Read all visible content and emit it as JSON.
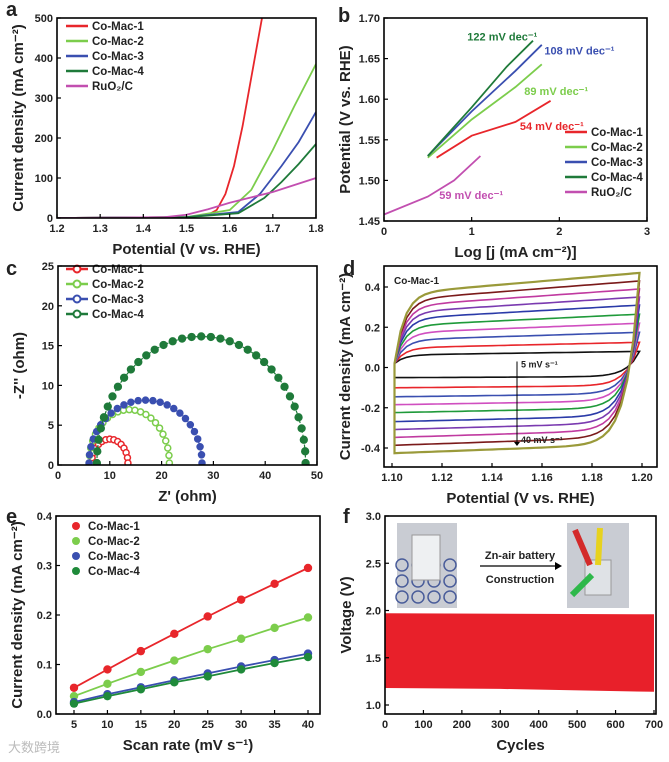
{
  "watermark": "大数跨境",
  "chart_data": [
    {
      "panel": "a",
      "type": "line",
      "xlabel": "Potential (V vs. RHE)",
      "ylabel": "Current density (mA cm⁻²)",
      "xlim": [
        1.2,
        1.8
      ],
      "ylim": [
        0,
        500
      ],
      "xticks": [
        "1.2",
        "1.3",
        "1.4",
        "1.5",
        "1.6",
        "1.7",
        "1.8"
      ],
      "yticks": [
        "0",
        "100",
        "200",
        "300",
        "400",
        "500"
      ],
      "legend": "top-left",
      "series": [
        {
          "name": "Co-Mac-1",
          "color": "#e8262b",
          "points": [
            [
              1.2,
              0
            ],
            [
              1.5,
              2
            ],
            [
              1.55,
              8
            ],
            [
              1.57,
              20
            ],
            [
              1.59,
              60
            ],
            [
              1.61,
              130
            ],
            [
              1.63,
              230
            ],
            [
              1.65,
              350
            ],
            [
              1.675,
              500
            ]
          ]
        },
        {
          "name": "Co-Mac-2",
          "color": "#7ccd4c",
          "points": [
            [
              1.2,
              0
            ],
            [
              1.5,
              2
            ],
            [
              1.6,
              20
            ],
            [
              1.65,
              70
            ],
            [
              1.7,
              170
            ],
            [
              1.75,
              280
            ],
            [
              1.8,
              385
            ]
          ]
        },
        {
          "name": "Co-Mac-3",
          "color": "#3a4fb0",
          "points": [
            [
              1.2,
              0
            ],
            [
              1.5,
              2
            ],
            [
              1.62,
              15
            ],
            [
              1.67,
              60
            ],
            [
              1.72,
              130
            ],
            [
              1.76,
              190
            ],
            [
              1.8,
              265
            ]
          ]
        },
        {
          "name": "Co-Mac-4",
          "color": "#1f7a3a",
          "points": [
            [
              1.2,
              0
            ],
            [
              1.5,
              2
            ],
            [
              1.62,
              12
            ],
            [
              1.68,
              50
            ],
            [
              1.72,
              90
            ],
            [
              1.76,
              135
            ],
            [
              1.8,
              185
            ]
          ]
        },
        {
          "name": "RuO₂/C",
          "color": "#c24fb0",
          "points": [
            [
              1.2,
              0
            ],
            [
              1.45,
              2
            ],
            [
              1.5,
              8
            ],
            [
              1.55,
              22
            ],
            [
              1.6,
              38
            ],
            [
              1.7,
              65
            ],
            [
              1.8,
              100
            ]
          ]
        }
      ]
    },
    {
      "panel": "b",
      "type": "line",
      "xlabel": "Log [j (mA cm⁻²)]",
      "ylabel": "Potential (V vs. RHE)",
      "xlim": [
        0,
        3
      ],
      "ylim": [
        1.45,
        1.7
      ],
      "xticks": [
        "0",
        "1",
        "2",
        "3"
      ],
      "yticks": [
        "1.45",
        "1.50",
        "1.55",
        "1.60",
        "1.65",
        "1.70"
      ],
      "legend": "bottom-right",
      "series": [
        {
          "name": "Co-Mac-1",
          "color": "#e8262b",
          "points": [
            [
              0.6,
              1.528
            ],
            [
              1.0,
              1.555
            ],
            [
              1.5,
              1.572
            ],
            [
              1.9,
              1.598
            ]
          ]
        },
        {
          "name": "Co-Mac-2",
          "color": "#7ccd4c",
          "points": [
            [
              0.5,
              1.528
            ],
            [
              1.0,
              1.575
            ],
            [
              1.5,
              1.615
            ],
            [
              1.8,
              1.643
            ]
          ]
        },
        {
          "name": "Co-Mac-3",
          "color": "#3a4fb0",
          "points": [
            [
              0.5,
              1.53
            ],
            [
              1.0,
              1.585
            ],
            [
              1.5,
              1.635
            ],
            [
              1.8,
              1.667
            ]
          ]
        },
        {
          "name": "Co-Mac-4",
          "color": "#1f7a3a",
          "points": [
            [
              0.5,
              1.53
            ],
            [
              1.0,
              1.59
            ],
            [
              1.4,
              1.64
            ],
            [
              1.7,
              1.672
            ]
          ]
        },
        {
          "name": "RuO₂/C",
          "color": "#c24fb0",
          "points": [
            [
              0,
              1.458
            ],
            [
              0.5,
              1.48
            ],
            [
              0.8,
              1.5
            ],
            [
              1.1,
              1.53
            ]
          ]
        }
      ],
      "annotations": [
        {
          "text": "122  mV dec⁻¹",
          "color": "#1f7a3a",
          "at": [
            0.95,
            1.672
          ]
        },
        {
          "text": "108  mV dec⁻¹",
          "color": "#3a4fb0",
          "at": [
            1.83,
            1.655
          ]
        },
        {
          "text": "89  mV dec⁻¹",
          "color": "#7ccd4c",
          "at": [
            1.6,
            1.605
          ]
        },
        {
          "text": "54  mV dec⁻¹",
          "color": "#e8262b",
          "at": [
            1.55,
            1.562
          ]
        },
        {
          "text": "59  mV dec⁻¹",
          "color": "#c24fb0",
          "at": [
            0.63,
            1.477
          ]
        }
      ]
    },
    {
      "panel": "c",
      "type": "scatter",
      "xlabel": "Z' (ohm)",
      "ylabel": "-Z'' (ohm)",
      "xlim": [
        0,
        50
      ],
      "ylim": [
        0,
        25
      ],
      "xticks": [
        "0",
        "10",
        "20",
        "30",
        "40",
        "50"
      ],
      "yticks": [
        "0",
        "5",
        "10",
        "15",
        "20",
        "25"
      ],
      "legend": "top-left",
      "series": [
        {
          "name": "Co-Mac-1",
          "color": "#e8262b",
          "arc": {
            "start": 6.5,
            "end": 13.5,
            "peak": 3.0,
            "n": 14
          }
        },
        {
          "name": "Co-Mac-2",
          "color": "#7ccd4c",
          "arc": {
            "start": 6.0,
            "end": 21.5,
            "peak": 6.7,
            "n": 22
          }
        },
        {
          "name": "Co-Mac-3",
          "color": "#3a4fb0",
          "arc": {
            "start": 6.0,
            "end": 27.8,
            "peak": 7.9,
            "n": 24
          }
        },
        {
          "name": "Co-Mac-4",
          "color": "#1f7a3a",
          "arc": {
            "start": 7.5,
            "end": 47.8,
            "peak": 15.9,
            "n": 34
          }
        }
      ]
    },
    {
      "panel": "d",
      "type": "line",
      "xlabel": "Potential (V vs. RHE)",
      "ylabel": "Current density (mA cm⁻²)",
      "xlim": [
        1.1,
        1.2
      ],
      "ylim": [
        -0.4,
        0.4
      ],
      "xticks": [
        "1.10",
        "1.12",
        "1.14",
        "1.16",
        "1.18",
        "1.20"
      ],
      "yticks": [
        "-0.4",
        "-0.2",
        "0.0",
        "0.2",
        "0.4"
      ],
      "sample": "Co-Mac-1",
      "arrow_start": "5 mV s⁻¹",
      "arrow_end": "40 mV s⁻¹",
      "series": [
        {
          "color": "#111111",
          "upper_end": 0.08,
          "lower_plateau": -0.045
        },
        {
          "color": "#e8262b",
          "upper_end": 0.125,
          "lower_plateau": -0.09
        },
        {
          "color": "#3a4fb0",
          "upper_end": 0.175,
          "lower_plateau": -0.13
        },
        {
          "color": "#d04fc0",
          "upper_end": 0.22,
          "lower_plateau": -0.165
        },
        {
          "color": "#1f9a3a",
          "upper_end": 0.265,
          "lower_plateau": -0.2
        },
        {
          "color": "#2a3aa8",
          "upper_end": 0.31,
          "lower_plateau": -0.24
        },
        {
          "color": "#7a3ab0",
          "upper_end": 0.35,
          "lower_plateau": -0.275
        },
        {
          "color": "#c03aa0",
          "upper_end": 0.39,
          "lower_plateau": -0.31
        },
        {
          "color": "#7a1a1a",
          "upper_end": 0.43,
          "lower_plateau": -0.345
        },
        {
          "color": "#9a9a3a",
          "upper_end": 0.47,
          "lower_plateau": -0.38
        }
      ]
    },
    {
      "panel": "e",
      "type": "scatter",
      "xlabel": "Scan rate (mV s⁻¹)",
      "ylabel": "Current density (mA cm⁻²)",
      "xlim": [
        5,
        40
      ],
      "ylim": [
        0,
        0.4
      ],
      "xticks": [
        "5",
        "10",
        "15",
        "20",
        "25",
        "30",
        "35",
        "40"
      ],
      "yticks": [
        "0.0",
        "0.1",
        "0.2",
        "0.3",
        "0.4"
      ],
      "legend": "top-left",
      "x": [
        5,
        10,
        15,
        20,
        25,
        30,
        35,
        40
      ],
      "series": [
        {
          "name": "Co-Mac-1",
          "color": "#e8262b",
          "values": [
            0.053,
            0.09,
            0.127,
            0.162,
            0.197,
            0.231,
            0.263,
            0.295
          ]
        },
        {
          "name": "Co-Mac-2",
          "color": "#7ccd4c",
          "values": [
            0.036,
            0.061,
            0.085,
            0.108,
            0.131,
            0.152,
            0.174,
            0.195
          ]
        },
        {
          "name": "Co-Mac-3",
          "color": "#3a4fb0",
          "values": [
            0.024,
            0.04,
            0.054,
            0.068,
            0.082,
            0.096,
            0.109,
            0.122
          ]
        },
        {
          "name": "Co-Mac-4",
          "color": "#1f8a3a",
          "values": [
            0.021,
            0.036,
            0.05,
            0.064,
            0.076,
            0.09,
            0.103,
            0.115
          ]
        }
      ]
    },
    {
      "panel": "f",
      "type": "area",
      "xlabel": "Cycles",
      "ylabel": "Voltage (V)",
      "xlim": [
        0,
        700
      ],
      "ylim": [
        1.0,
        3.0
      ],
      "xticks": [
        "0",
        "100",
        "200",
        "300",
        "400",
        "500",
        "600",
        "700"
      ],
      "yticks": [
        "1.0",
        "1.5",
        "2.0",
        "2.5",
        "3.0"
      ],
      "band": {
        "color": "#e8202a",
        "upper": [
          [
            0,
            1.97
          ],
          [
            700,
            1.96
          ]
        ],
        "lower": [
          [
            0,
            1.18
          ],
          [
            300,
            1.17
          ],
          [
            700,
            1.14
          ]
        ]
      },
      "inset_text": [
        "Zn-air battery",
        "Construction"
      ]
    }
  ]
}
